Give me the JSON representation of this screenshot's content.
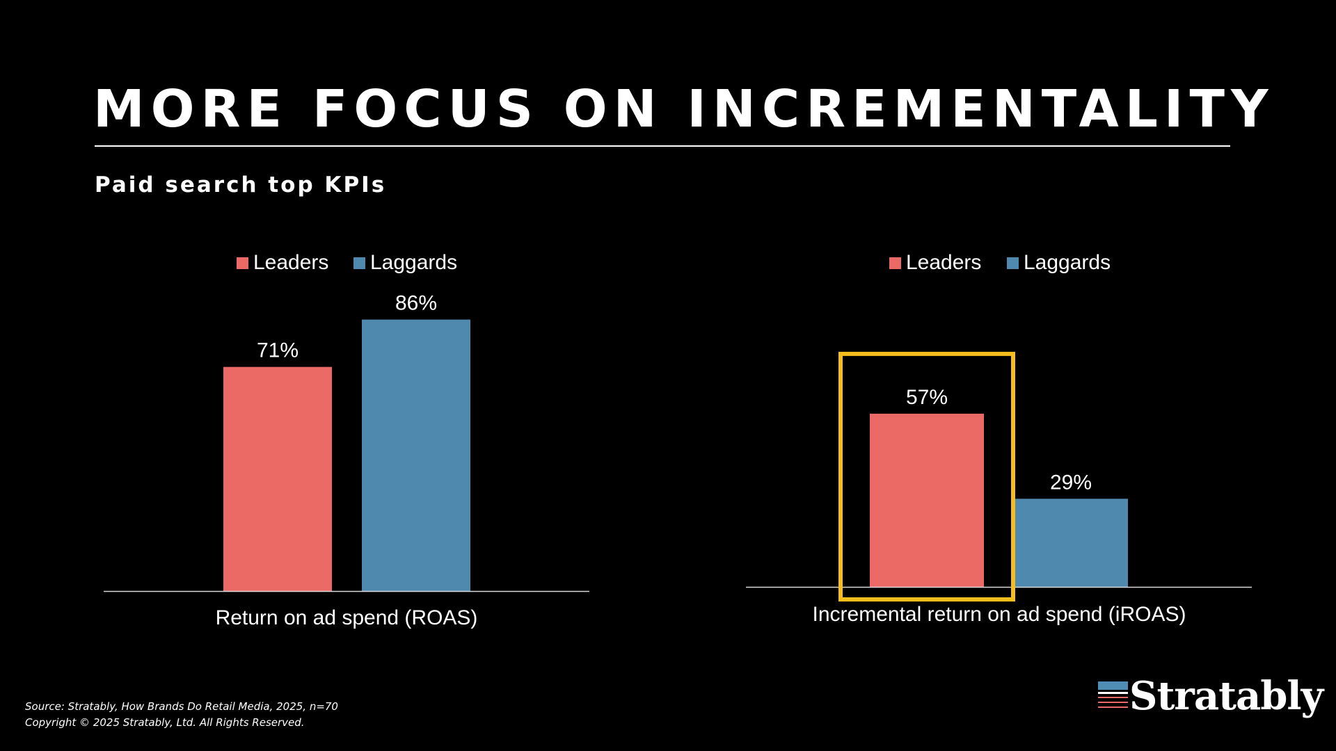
{
  "slide": {
    "title": "MORE FOCUS ON INCREMENTALITY",
    "subtitle": "Paid search top KPIs"
  },
  "footer": {
    "source": "Source: Stratably, How Brands Do Retail Media, 2025, n=70",
    "copyright": "Copyright © 2025 Stratably, Ltd. All Rights Reserved."
  },
  "logo": {
    "text": "Stratably",
    "icon": "stacked-bars-logo-icon",
    "colors": [
      "#4f8db5",
      "#ffffff",
      "#e76a66"
    ]
  },
  "colors": {
    "leaders": "#ec6a66",
    "laggards": "#4f89ae",
    "highlight": "#f5be1c",
    "background": "#000000"
  },
  "chart_data": [
    {
      "type": "bar",
      "categories": [
        "Return on ad spend (ROAS)"
      ],
      "series": [
        {
          "name": "Leaders",
          "values": [
            71
          ]
        },
        {
          "name": "Laggards",
          "values": [
            86
          ]
        }
      ],
      "data_labels": [
        [
          "71%"
        ],
        [
          "86%"
        ]
      ],
      "legend": "top",
      "grid": false,
      "highlight": null
    },
    {
      "type": "bar",
      "categories": [
        "Incremental return on ad spend (iROAS)"
      ],
      "series": [
        {
          "name": "Leaders",
          "values": [
            57
          ]
        },
        {
          "name": "Laggards",
          "values": [
            29
          ]
        }
      ],
      "data_labels": [
        [
          "57%"
        ],
        [
          "29%"
        ]
      ],
      "legend": "top",
      "grid": false,
      "highlight": "Leaders"
    }
  ]
}
